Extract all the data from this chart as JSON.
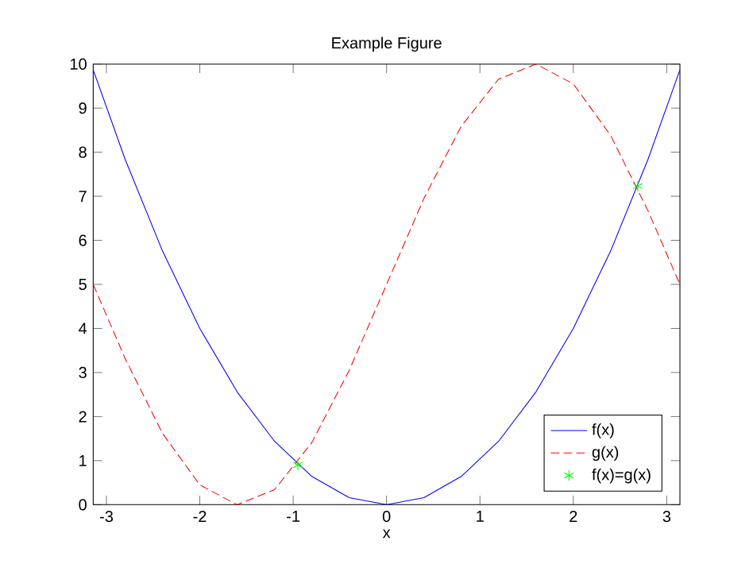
{
  "chart_data": {
    "type": "line",
    "title": "Example Figure",
    "xlabel": "x",
    "xlim": [
      -3.1416,
      3.1416
    ],
    "xticks": [
      -3,
      -2,
      -1,
      0,
      1,
      2,
      3
    ],
    "ylim": [
      0,
      10
    ],
    "yticks": [
      0,
      1,
      2,
      3,
      4,
      5,
      6,
      7,
      8,
      9,
      10
    ],
    "legend": "bottom right",
    "series": [
      {
        "name": "f(x)",
        "color": "#0000ff",
        "line_style": "solid",
        "x": [
          -3.1416,
          -2.8,
          -2.4,
          -2,
          -1.6,
          -1.2,
          -0.8,
          -0.4,
          0,
          0.4,
          0.8,
          1.2,
          1.6,
          2,
          2.4,
          2.8,
          3.1416
        ],
        "values": [
          9.87,
          7.84,
          5.76,
          4,
          2.56,
          1.44,
          0.64,
          0.16,
          0,
          0.16,
          0.64,
          1.44,
          2.56,
          4,
          5.76,
          7.84,
          9.87
        ]
      },
      {
        "name": "g(x)",
        "color": "#ff0000",
        "line_style": "dashed",
        "x": [
          -3.1416,
          -2.8,
          -2.4,
          -2,
          -1.6,
          -1.2,
          -0.8,
          -0.4,
          0,
          0.4,
          0.8,
          1.2,
          1.6,
          2,
          2.4,
          2.8,
          3.1416
        ],
        "values": [
          5,
          3.32,
          1.62,
          0.45,
          0,
          0.34,
          1.41,
          3.05,
          5,
          6.95,
          8.59,
          9.66,
          10,
          9.55,
          8.38,
          6.67,
          5
        ]
      },
      {
        "name": "f(x)=g(x)",
        "color": "#00ff00",
        "type": "scatter",
        "marker": "cross",
        "x": [
          -0.95,
          2.69
        ],
        "values": [
          0.9,
          7.23
        ]
      }
    ]
  }
}
